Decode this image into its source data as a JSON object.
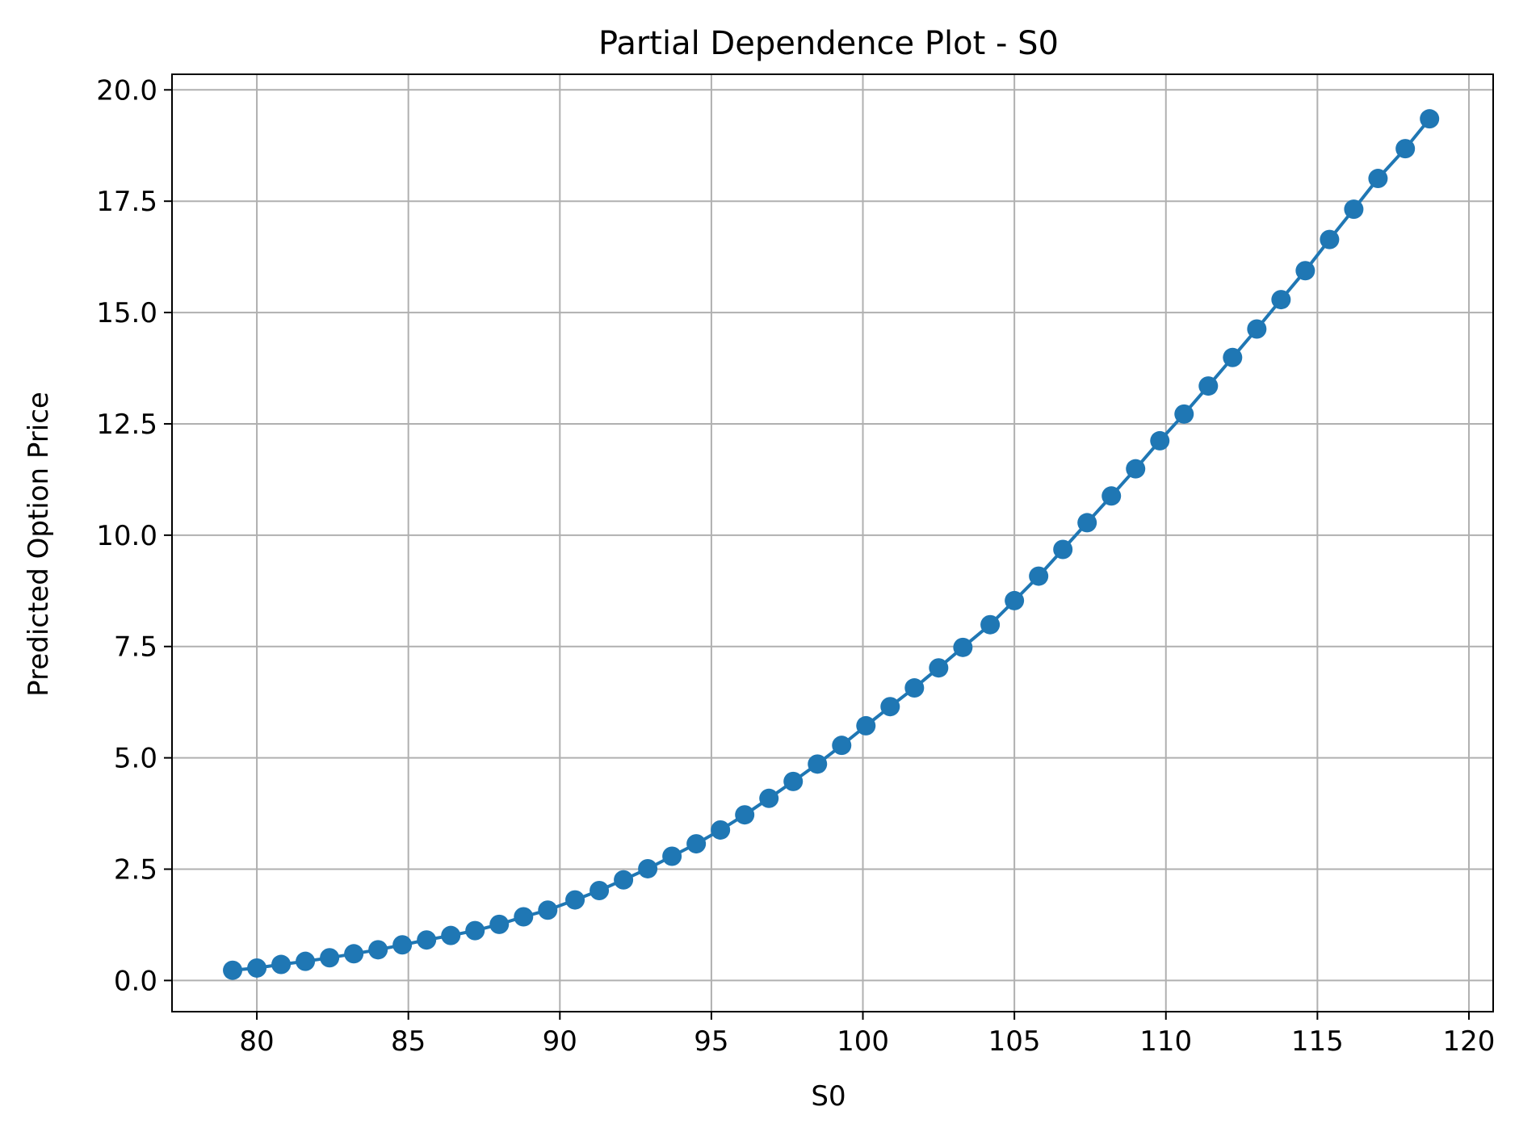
{
  "chart_data": {
    "type": "line",
    "title": "Partial Dependence Plot - S0",
    "xlabel": "S0",
    "ylabel": "Predicted Option Price",
    "xlim": [
      77.2,
      120.8
    ],
    "ylim": [
      -0.7,
      20.35
    ],
    "xticks": [
      80,
      85,
      90,
      95,
      100,
      105,
      110,
      115,
      120
    ],
    "xtick_labels": [
      "80",
      "85",
      "90",
      "95",
      "100",
      "105",
      "110",
      "115",
      "120"
    ],
    "yticks": [
      0,
      2.5,
      5,
      7.5,
      10,
      12.5,
      15,
      17.5,
      20
    ],
    "ytick_labels": [
      "0.0",
      "2.5",
      "5.0",
      "7.5",
      "10.0",
      "12.5",
      "15.0",
      "17.5",
      "20.0"
    ],
    "grid": true,
    "markers": "circle",
    "colors": {
      "series": "#1f77b4",
      "grid": "#b0b0b0",
      "axes": "#000000"
    },
    "series": [
      {
        "x": [
          79.2,
          80.0,
          80.8,
          81.6,
          82.4,
          83.2,
          84.0,
          84.8,
          85.6,
          86.4,
          87.2,
          88.0,
          88.8,
          89.6,
          90.5,
          91.3,
          92.1,
          92.9,
          93.7,
          94.5,
          95.3,
          96.1,
          96.9,
          97.7,
          98.5,
          99.3,
          100.1,
          100.9,
          101.7,
          102.5,
          103.3,
          104.2,
          105.0,
          105.8,
          106.6,
          107.4,
          108.2,
          109.0,
          109.8,
          110.6,
          111.4,
          112.2,
          113.0,
          113.8,
          114.6,
          115.4,
          116.2,
          117.0,
          117.9,
          118.7
        ],
        "y": [
          0.23,
          0.28,
          0.36,
          0.43,
          0.51,
          0.6,
          0.69,
          0.8,
          0.91,
          1.01,
          1.12,
          1.26,
          1.43,
          1.58,
          1.81,
          2.02,
          2.26,
          2.51,
          2.79,
          3.07,
          3.38,
          3.72,
          4.09,
          4.47,
          4.86,
          5.28,
          5.72,
          6.15,
          6.57,
          7.02,
          7.48,
          7.99,
          8.53,
          9.08,
          9.68,
          10.28,
          10.88,
          11.49,
          12.12,
          12.72,
          13.35,
          13.99,
          14.63,
          15.29,
          15.94,
          16.64,
          17.32,
          18.01,
          18.68,
          19.35
        ]
      }
    ]
  }
}
